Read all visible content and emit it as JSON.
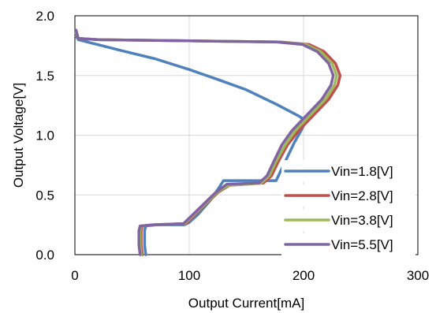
{
  "chart_data": {
    "type": "line",
    "title": "",
    "xlabel": "Output Current[mA]",
    "ylabel": "Output Voltage[V]",
    "xlim": [
      0,
      300
    ],
    "ylim": [
      0,
      2.0
    ],
    "x_ticks": [
      "0",
      "100",
      "200",
      "300"
    ],
    "y_ticks": [
      "0.0",
      "0.5",
      "1.0",
      "1.5",
      "2.0"
    ],
    "grid": true,
    "legend_position": "bottom-right",
    "series": [
      {
        "name": "Vin=1.8[V]",
        "color": "#4f81bd",
        "points": [
          [
            62,
            0.0
          ],
          [
            61,
            0.08
          ],
          [
            61,
            0.2
          ],
          [
            62,
            0.24
          ],
          [
            72,
            0.25
          ],
          [
            96,
            0.25
          ],
          [
            100,
            0.27
          ],
          [
            108,
            0.34
          ],
          [
            118,
            0.45
          ],
          [
            126,
            0.56
          ],
          [
            130,
            0.62
          ],
          [
            152,
            0.62
          ],
          [
            170,
            0.62
          ],
          [
            176,
            0.62
          ],
          [
            180,
            0.7
          ],
          [
            186,
            0.82
          ],
          [
            192,
            0.94
          ],
          [
            198,
            1.04
          ],
          [
            202,
            1.12
          ],
          [
            196,
            1.16
          ],
          [
            176,
            1.26
          ],
          [
            150,
            1.38
          ],
          [
            124,
            1.47
          ],
          [
            100,
            1.55
          ],
          [
            70,
            1.64
          ],
          [
            40,
            1.71
          ],
          [
            15,
            1.77
          ],
          [
            3,
            1.8
          ],
          [
            1,
            1.83
          ]
        ]
      },
      {
        "name": "Vin=2.8[V]",
        "color": "#c0504d",
        "points": [
          [
            59,
            0.0
          ],
          [
            58,
            0.08
          ],
          [
            58,
            0.2
          ],
          [
            59,
            0.24
          ],
          [
            70,
            0.25
          ],
          [
            97,
            0.26
          ],
          [
            110,
            0.38
          ],
          [
            125,
            0.52
          ],
          [
            135,
            0.58
          ],
          [
            165,
            0.6
          ],
          [
            172,
            0.66
          ],
          [
            178,
            0.78
          ],
          [
            186,
            0.92
          ],
          [
            196,
            1.04
          ],
          [
            210,
            1.18
          ],
          [
            222,
            1.3
          ],
          [
            230,
            1.42
          ],
          [
            232,
            1.5
          ],
          [
            228,
            1.6
          ],
          [
            218,
            1.7
          ],
          [
            205,
            1.76
          ],
          [
            180,
            1.78
          ],
          [
            100,
            1.79
          ],
          [
            20,
            1.8
          ],
          [
            3,
            1.81
          ],
          [
            1,
            1.85
          ]
        ]
      },
      {
        "name": "Vin=3.8[V]",
        "color": "#9bbb59",
        "points": [
          [
            58,
            0.0
          ],
          [
            57,
            0.08
          ],
          [
            57,
            0.2
          ],
          [
            58,
            0.24
          ],
          [
            69,
            0.25
          ],
          [
            96,
            0.26
          ],
          [
            109,
            0.38
          ],
          [
            124,
            0.52
          ],
          [
            134,
            0.58
          ],
          [
            163,
            0.6
          ],
          [
            170,
            0.66
          ],
          [
            176,
            0.78
          ],
          [
            184,
            0.92
          ],
          [
            193,
            1.04
          ],
          [
            207,
            1.18
          ],
          [
            219,
            1.3
          ],
          [
            227,
            1.42
          ],
          [
            229,
            1.5
          ],
          [
            225,
            1.6
          ],
          [
            215,
            1.7
          ],
          [
            202,
            1.76
          ],
          [
            178,
            1.78
          ],
          [
            100,
            1.79
          ],
          [
            20,
            1.8
          ],
          [
            3,
            1.81
          ],
          [
            1,
            1.86
          ]
        ]
      },
      {
        "name": "Vin=5.5[V]",
        "color": "#8064a2",
        "points": [
          [
            57,
            0.0
          ],
          [
            56,
            0.08
          ],
          [
            56,
            0.2
          ],
          [
            57,
            0.24
          ],
          [
            68,
            0.25
          ],
          [
            95,
            0.26
          ],
          [
            108,
            0.38
          ],
          [
            123,
            0.52
          ],
          [
            133,
            0.59
          ],
          [
            161,
            0.6
          ],
          [
            168,
            0.66
          ],
          [
            174,
            0.78
          ],
          [
            181,
            0.92
          ],
          [
            190,
            1.04
          ],
          [
            204,
            1.18
          ],
          [
            216,
            1.3
          ],
          [
            224,
            1.42
          ],
          [
            226,
            1.5
          ],
          [
            222,
            1.6
          ],
          [
            212,
            1.7
          ],
          [
            199,
            1.76
          ],
          [
            176,
            1.78
          ],
          [
            100,
            1.79
          ],
          [
            20,
            1.8
          ],
          [
            3,
            1.81
          ],
          [
            1,
            1.88
          ]
        ]
      }
    ]
  }
}
